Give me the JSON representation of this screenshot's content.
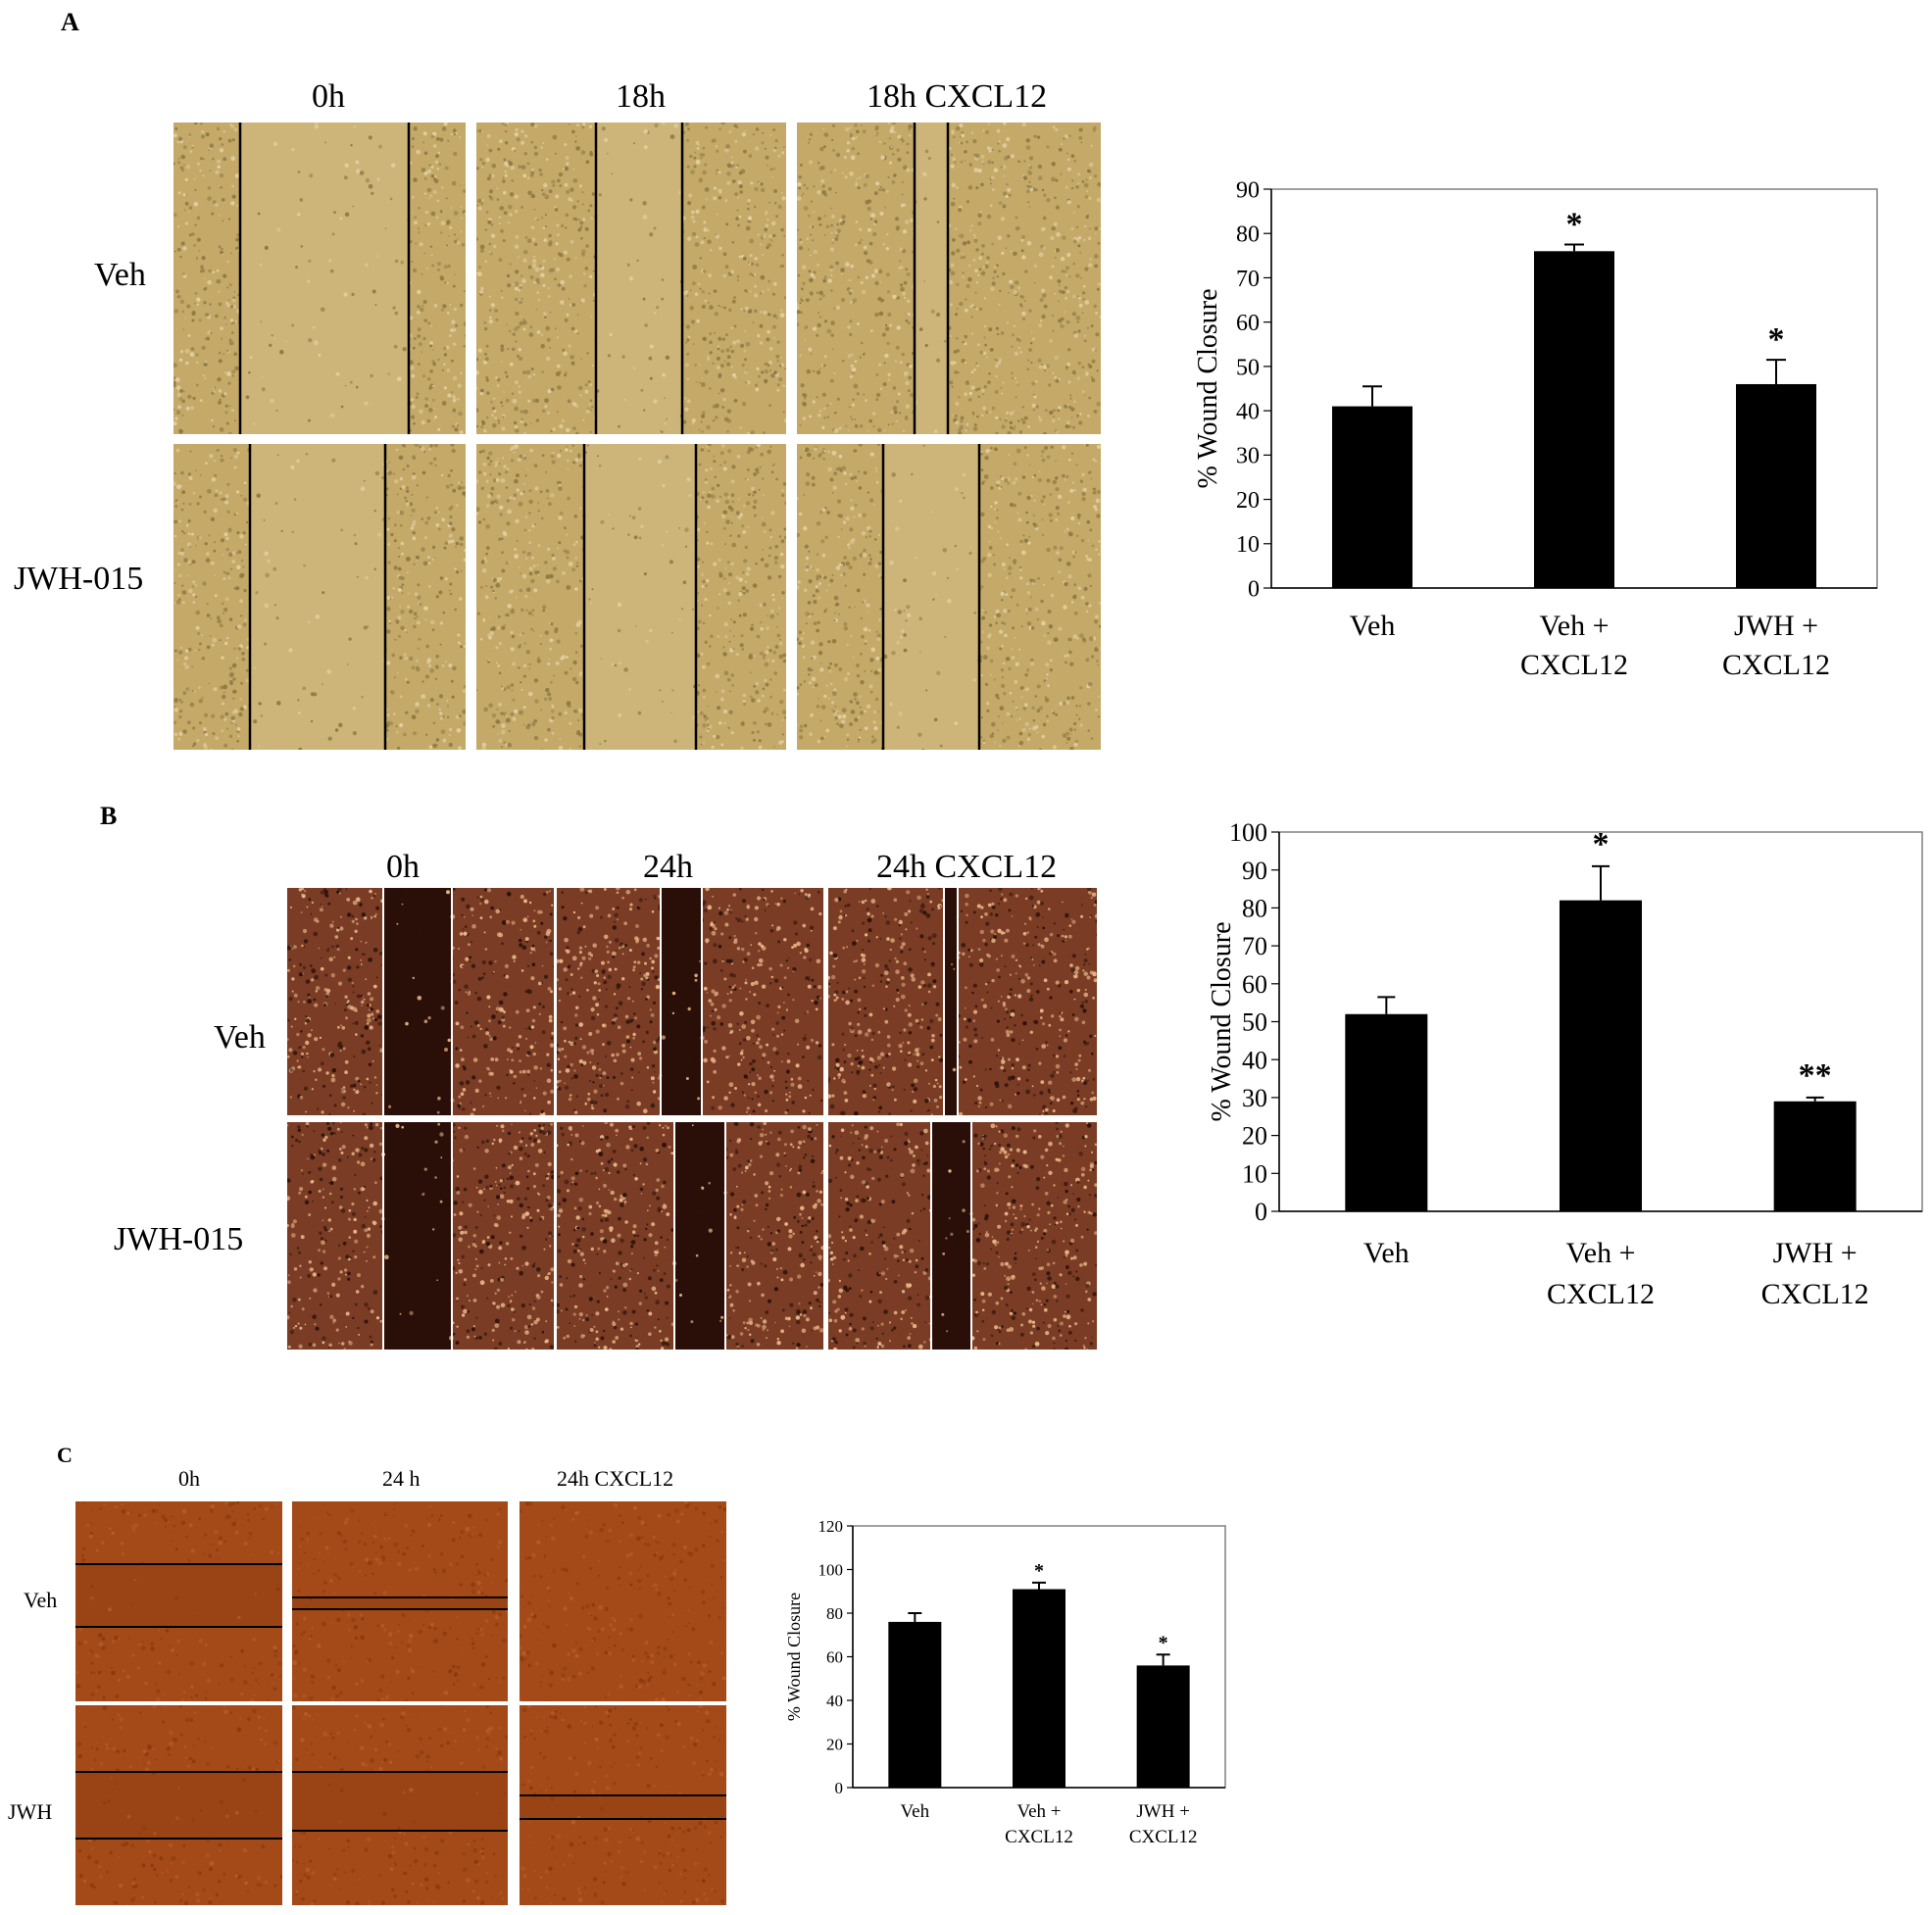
{
  "panels": [
    {
      "letter": "A",
      "columns": [
        "0h",
        "18h",
        "18h CXCL12"
      ],
      "rows": [
        "Veh",
        "JWH-015"
      ],
      "micrograph_style": "phase-contrast-yellow",
      "chart": {
        "ylabel": "% Wound Closure",
        "yticks": [
          "0",
          "10",
          "20",
          "30",
          "40",
          "50",
          "60",
          "70",
          "80",
          "90"
        ],
        "categories": [
          [
            "Veh"
          ],
          [
            "Veh +",
            "CXCL12"
          ],
          [
            "JWH +",
            "CXCL12"
          ]
        ],
        "significance": [
          "",
          "*",
          "*"
        ]
      }
    },
    {
      "letter": "B",
      "columns": [
        "0h",
        "24h",
        "24h CXCL12"
      ],
      "rows": [
        "Veh",
        "JWH-015"
      ],
      "micrograph_style": "dark-field-red",
      "chart": {
        "ylabel": "% Wound Closure",
        "yticks": [
          "0",
          "10",
          "20",
          "30",
          "40",
          "50",
          "60",
          "70",
          "80",
          "90",
          "100"
        ],
        "categories": [
          [
            "Veh"
          ],
          [
            "Veh +",
            "CXCL12"
          ],
          [
            "JWH +",
            "CXCL12"
          ]
        ],
        "significance": [
          "",
          "*",
          "**"
        ]
      }
    },
    {
      "letter": "C",
      "columns": [
        "0h",
        "24 h",
        "24h CXCL12"
      ],
      "rows": [
        "Veh",
        "JWH"
      ],
      "micrograph_style": "bright-field-brown",
      "chart": {
        "ylabel": "% Wound Closure",
        "yticks": [
          "0",
          "20",
          "40",
          "60",
          "80",
          "100",
          "120"
        ],
        "categories": [
          [
            "Veh"
          ],
          [
            "Veh +",
            "CXCL12"
          ],
          [
            "JWH +",
            "CXCL12"
          ]
        ],
        "significance": [
          "",
          "*",
          "*"
        ]
      }
    }
  ],
  "chart_data": [
    {
      "type": "bar",
      "categories": [
        "Veh",
        "Veh + CXCL12",
        "JWH + CXCL12"
      ],
      "values": [
        41,
        76,
        46
      ],
      "error": [
        4.5,
        1.5,
        5.5
      ],
      "ylabel": "% Wound Closure",
      "ylim": [
        0,
        90
      ],
      "annotations": [
        "",
        "*",
        "*"
      ],
      "grid": false
    },
    {
      "type": "bar",
      "categories": [
        "Veh",
        "Veh + CXCL12",
        "JWH + CXCL12"
      ],
      "values": [
        52,
        82,
        29
      ],
      "error": [
        4.5,
        9,
        1
      ],
      "ylabel": "% Wound Closure",
      "ylim": [
        0,
        100
      ],
      "annotations": [
        "",
        "*",
        "**"
      ],
      "grid": false
    },
    {
      "type": "bar",
      "categories": [
        "Veh",
        "Veh + CXCL12",
        "JWH + CXCL12"
      ],
      "values": [
        76,
        91,
        56
      ],
      "error": [
        4,
        3,
        5
      ],
      "ylabel": "% Wound Closure",
      "ylim": [
        0,
        120
      ],
      "annotations": [
        "",
        "*",
        "*"
      ],
      "grid": false
    }
  ]
}
